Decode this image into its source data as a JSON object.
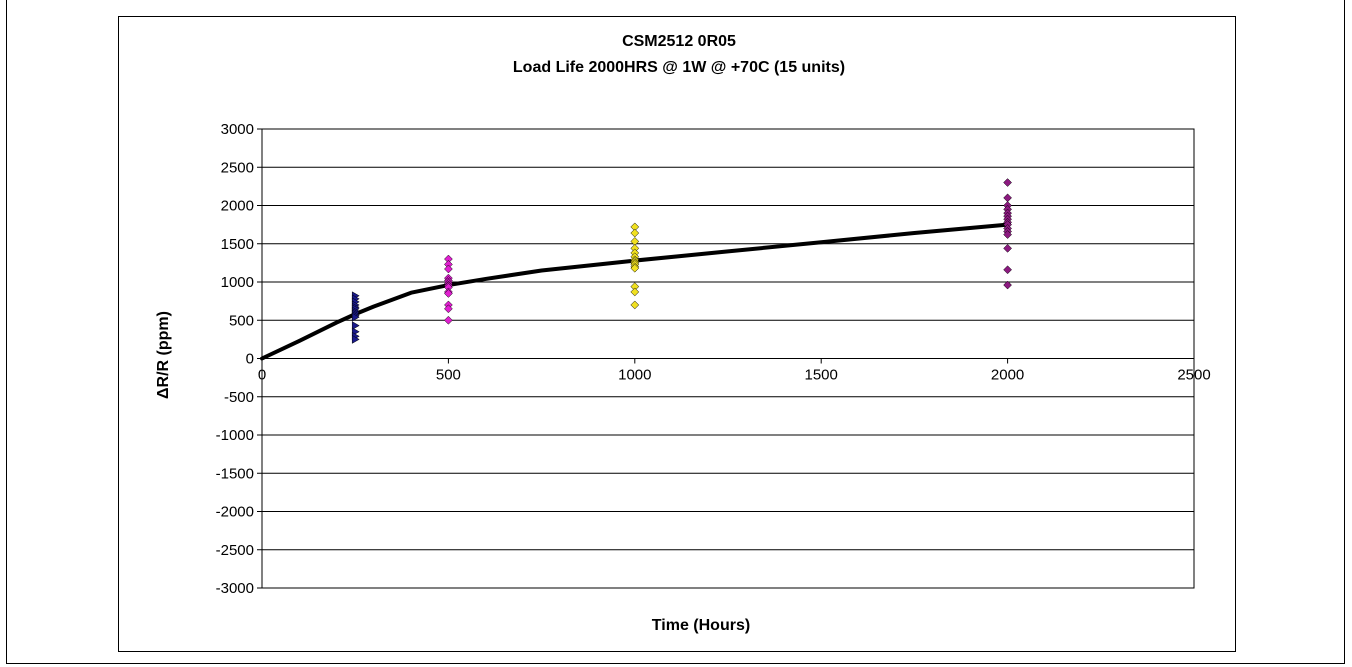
{
  "chart_data": {
    "type": "scatter",
    "title": "CSM2512 0R05",
    "subtitle": "Load Life 2000HRS @ 1W @ +70C (15 units)",
    "xlabel": "Time (Hours)",
    "ylabel": "ΔR/R (ppm)",
    "xlim": [
      0,
      2500
    ],
    "ylim": [
      -3000,
      3000
    ],
    "x_ticks": [
      "0",
      "500",
      "1000",
      "1500",
      "2000",
      "2500"
    ],
    "y_ticks": [
      "3000",
      "2500",
      "2000",
      "1500",
      "1000",
      "500",
      "0",
      "-500",
      "-1000",
      "-1500",
      "-2000",
      "-2500",
      "-3000"
    ],
    "grid": "horizontal",
    "legend": "none",
    "series": [
      {
        "marker": "triangle-right",
        "color": "#1a1a8c",
        "x": [
          250,
          250,
          250,
          250,
          250,
          250,
          250,
          250,
          250,
          250,
          250,
          250,
          250,
          250,
          250
        ],
        "y": [
          820,
          780,
          740,
          700,
          670,
          650,
          620,
          600,
          580,
          560,
          540,
          430,
          350,
          290,
          250
        ]
      },
      {
        "marker": "diamond",
        "color": "#e020d0",
        "x": [
          500,
          500,
          500,
          500,
          500,
          500,
          500,
          500,
          500,
          500,
          500,
          500,
          500,
          500,
          500
        ],
        "y": [
          1300,
          1230,
          1170,
          1050,
          1020,
          1000,
          980,
          960,
          950,
          930,
          870,
          850,
          700,
          650,
          500
        ]
      },
      {
        "marker": "diamond",
        "color": "#f0e020",
        "x": [
          1000,
          1000,
          1000,
          1000,
          1000,
          1000,
          1000,
          1000,
          1000,
          1000,
          1000,
          1000,
          1000,
          1000,
          1000
        ],
        "y": [
          1720,
          1640,
          1530,
          1440,
          1380,
          1330,
          1290,
          1270,
          1250,
          1230,
          1200,
          1180,
          940,
          870,
          700
        ]
      },
      {
        "marker": "diamond",
        "color": "#8c1a80",
        "x": [
          2000,
          2000,
          2000,
          2000,
          2000,
          2000,
          2000,
          2000,
          2000,
          2000,
          2000,
          2000,
          2000,
          2000,
          2000
        ],
        "y": [
          2300,
          2100,
          2000,
          1950,
          1900,
          1860,
          1820,
          1780,
          1750,
          1700,
          1660,
          1620,
          1440,
          1160,
          960
        ]
      }
    ],
    "trendline": {
      "color": "#000000",
      "x": [
        0,
        100,
        200,
        250,
        300,
        400,
        500,
        600,
        750,
        1000,
        1250,
        1500,
        1750,
        2000
      ],
      "y": [
        0,
        230,
        470,
        580,
        680,
        860,
        960,
        1040,
        1150,
        1280,
        1400,
        1520,
        1640,
        1750
      ]
    }
  }
}
